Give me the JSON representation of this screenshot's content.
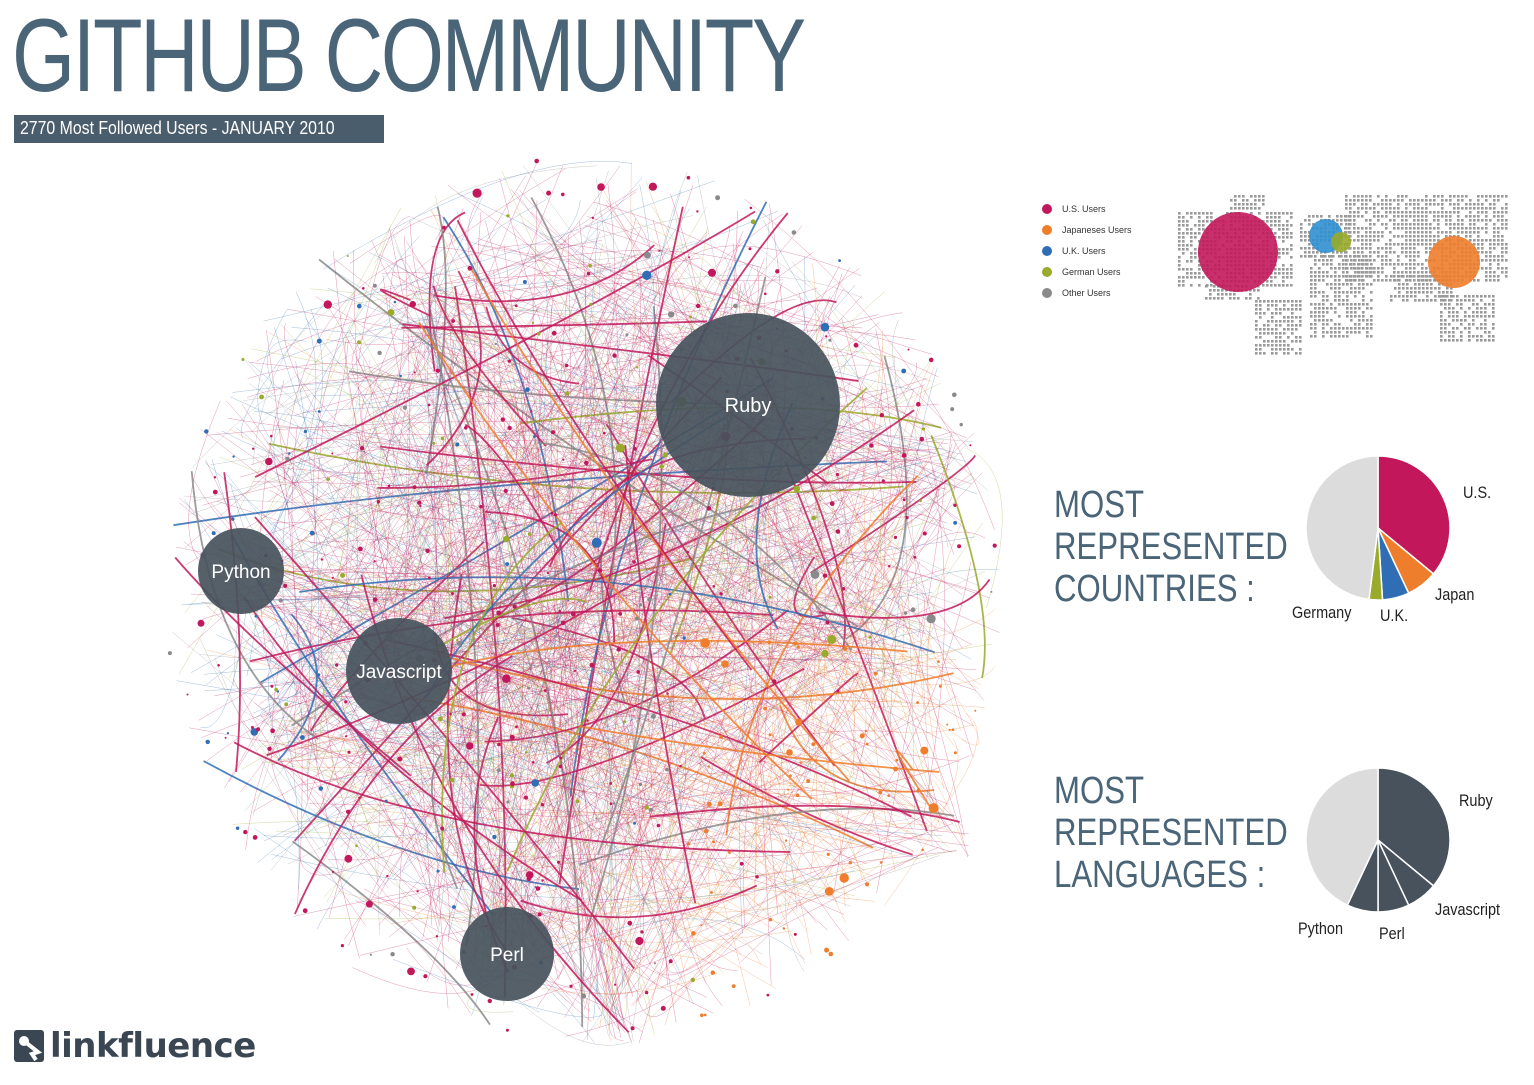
{
  "header": {
    "title": "GITHUB COMMUNITY",
    "subtitle": "2770 Most Followed Users - JANUARY 2010"
  },
  "network": {
    "clusters": [
      {
        "name": "Ruby"
      },
      {
        "name": "Python"
      },
      {
        "name": "Javascript"
      },
      {
        "name": "Perl"
      }
    ],
    "colors": {
      "us": "#c2185b",
      "japan": "#ee7d2c",
      "uk": "#2f6eb5",
      "germany": "#9aaa2a",
      "other": "#8a8a8a",
      "cluster": "#47525c"
    }
  },
  "legend": {
    "items": [
      {
        "label": "U.S. Users",
        "color": "#c2185b"
      },
      {
        "label": "Japaneses Users",
        "color": "#ee7d2c"
      },
      {
        "label": "U.K. Users",
        "color": "#2f6eb5"
      },
      {
        "label": "German Users",
        "color": "#9aaa2a"
      },
      {
        "label": "Other Users",
        "color": "#8a8a8a"
      }
    ]
  },
  "countries": {
    "heading": [
      "MOST",
      "REPRESENTED",
      "COUNTRIES :"
    ],
    "labels": {
      "us": "U.S.",
      "japan": "Japan",
      "uk": "U.K.",
      "germany": "Germany"
    }
  },
  "languages": {
    "heading": [
      "MOST",
      "REPRESENTED",
      "LANGUAGES :"
    ],
    "labels": {
      "ruby": "Ruby",
      "javascript": "Javascript",
      "perl": "Perl",
      "python": "Python"
    }
  },
  "logo": {
    "text": "linkfluence"
  },
  "chart_data": [
    {
      "type": "pie",
      "title": "MOST REPRESENTED COUNTRIES :",
      "categories": [
        "U.S.",
        "Japan",
        "U.K.",
        "Germany",
        "Other"
      ],
      "values": [
        36,
        7,
        6,
        3,
        48
      ],
      "colors": [
        "#c2185b",
        "#ee7d2c",
        "#2f6eb5",
        "#9aaa2a",
        "#dcdcdc"
      ]
    },
    {
      "type": "pie",
      "title": "MOST REPRESENTED LANGUAGES :",
      "categories": [
        "Ruby",
        "Javascript",
        "Perl",
        "Python",
        "Other"
      ],
      "values": [
        36,
        7,
        7,
        7,
        43
      ],
      "colors": [
        "#47525c",
        "#47525c",
        "#47525c",
        "#47525c",
        "#dcdcdc"
      ]
    }
  ]
}
